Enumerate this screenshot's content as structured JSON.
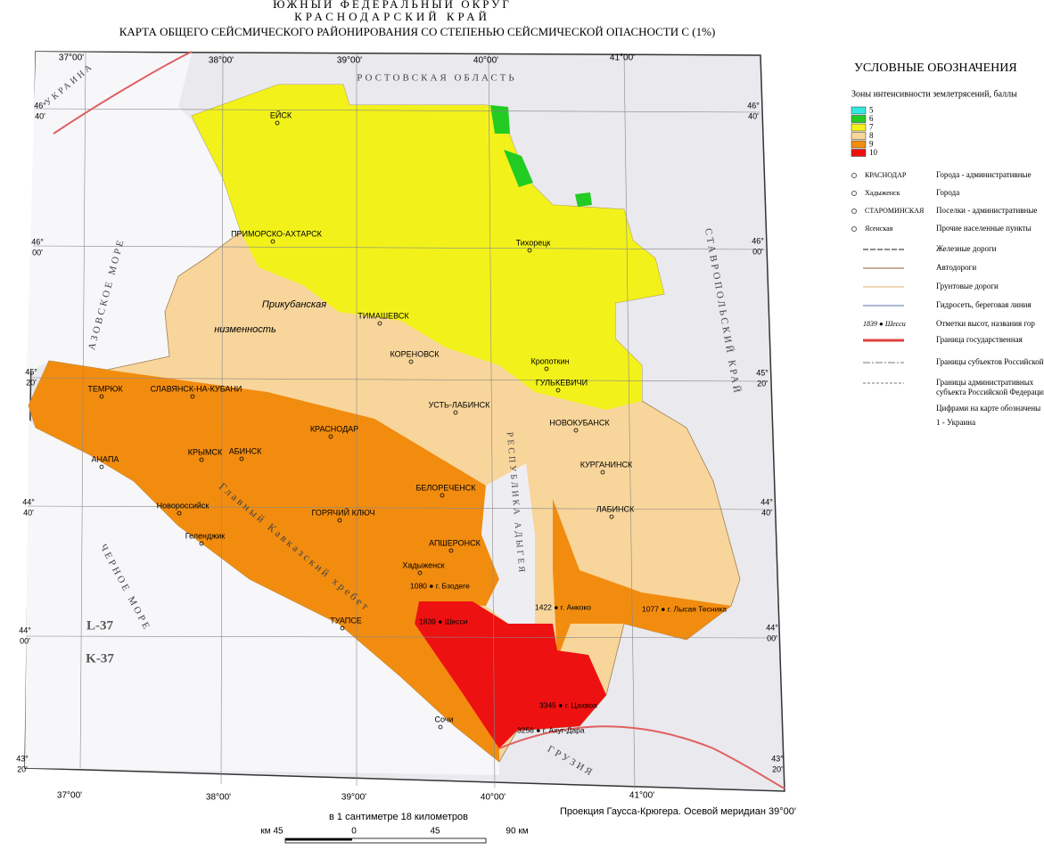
{
  "header": {
    "line1": "ЮЖНЫЙ ФЕДЕРАЛЬНЫЙ ОКРУГ",
    "line2": "КРАСНОДАРСКИЙ КРАЙ",
    "line3": "КАРТА ОБЩЕГО СЕЙСМИЧЕСКОГО РАЙОНИРОВАНИЯ СО СТЕПЕНЬЮ СЕЙСМИЧЕСКОЙ ОПАСНОСТИ С (1%)"
  },
  "map": {
    "lon_top": [
      "37°00'",
      "38°00'",
      "39°00'",
      "40°00'",
      "41°00'"
    ],
    "lon_bottom": [
      "37°00'",
      "38°00'",
      "39°00'",
      "40°00'",
      "41°00'"
    ],
    "lat_left": [
      {
        "deg": "46°",
        "min": "40'"
      },
      {
        "deg": "46°",
        "min": "00'"
      },
      {
        "deg": "45°",
        "min": "20'"
      },
      {
        "deg": "44°",
        "min": "40'"
      },
      {
        "deg": "44°",
        "min": "00'"
      },
      {
        "deg": "43°",
        "min": "20'"
      }
    ],
    "lat_right": [
      {
        "deg": "46°",
        "min": "40'"
      },
      {
        "deg": "46°",
        "min": "00'"
      },
      {
        "deg": "45°",
        "min": "20'"
      },
      {
        "deg": "44°",
        "min": "40'"
      },
      {
        "deg": "44°",
        "min": "00'"
      },
      {
        "deg": "43°",
        "min": "20'"
      }
    ],
    "regions": [
      "РОСТОВСКАЯ ОБЛАСТЬ",
      "УКРАИНА",
      "АЗОВСКОЕ МОРЕ",
      "ЧЕРНОЕ МОРЕ",
      "ГРУЗИЯ",
      "СТАВРОПОЛЬСКИЙ КРАЙ",
      "РЕСПУБЛИКА АДЫГЕЯ",
      "Главный Кавказский хребет"
    ],
    "lowland": [
      "Прикубанская",
      "низменность"
    ],
    "sheets": [
      "L-37",
      "K-37"
    ],
    "cities": [
      "ЕЙСК",
      "ПРИМОРСКО-АХТАРСК",
      "ТИМАШЕВСК",
      "КОРЕНОВСК",
      "СЛАВЯНСК-НА-КУБАНИ",
      "ТЕМРЮК",
      "КРЫМСК",
      "АБИНСК",
      "КРАСНОДАР",
      "УСТЬ-ЛАБИНСК",
      "НОВОКУБАНСК",
      "КУРГАНИНСК",
      "ЛАБИНСК",
      "БЕЛОРЕЧЕНСК",
      "АПШЕРОНСК",
      "ТУАПСЕ",
      "ГОРЯЧИЙ КЛЮЧ",
      "ГУЛЬКЕВИЧИ",
      "Тихорецк",
      "Кропоткин",
      "АНАПА",
      "Новороссийск",
      "Геленджик",
      "Хадыженск",
      "Сочи"
    ],
    "peaks": [
      "1080 ● г. Бзодеге",
      "1839 ● Шесси",
      "1422 ● г. Анкоко",
      "1077 ● г. Лысая Тесника",
      "3345 ● г. Цахвоа",
      "3256 ● г. Ахуг-Дара"
    ]
  },
  "scale": {
    "caption": "в 1 сантиметре 18 километров",
    "labels": [
      "км 45",
      "0",
      "45",
      "90 км"
    ],
    "projection": "Проекция Гаусса-Крюгера. Осевой меридиан 39°00'"
  },
  "legend": {
    "title": "УСЛОВНЫЕ ОБОЗНАЧЕНИЯ",
    "zones_title": "Зоны интенсивности землетрясений, баллы",
    "zones": [
      {
        "label": "5",
        "color": "#33e8e0"
      },
      {
        "label": "6",
        "color": "#22cc22"
      },
      {
        "label": "7",
        "color": "#f2f21a"
      },
      {
        "label": "8",
        "color": "#f8d59a"
      },
      {
        "label": "9",
        "color": "#f28c0f"
      },
      {
        "label": "10",
        "color": "#ee1111"
      }
    ],
    "settlements": [
      {
        "sample": "КРАСНОДАР",
        "label": "Города - административные"
      },
      {
        "sample": "Хадыженск",
        "label": "Города"
      },
      {
        "sample": "СТАРОМИНСКАЯ",
        "label": "Поселки - административные"
      },
      {
        "sample": "Ясенская",
        "label": "Прочие населенные пункты"
      }
    ],
    "lines": [
      "Железные дороги",
      "Автодороги",
      "Грунтовые дороги",
      "Гидросеть, береговая линия"
    ],
    "heights": {
      "sample": "1839 ● Шесси",
      "label": "Отметки высот, названия гор"
    },
    "borders": [
      "Граница государственная",
      "Границы субъектов Российской"
    ],
    "admin": [
      "Границы административных",
      "субъекта Российской Федерации"
    ],
    "numbers": "Цифрами на карте обозначены",
    "note": "1 - Украина"
  }
}
